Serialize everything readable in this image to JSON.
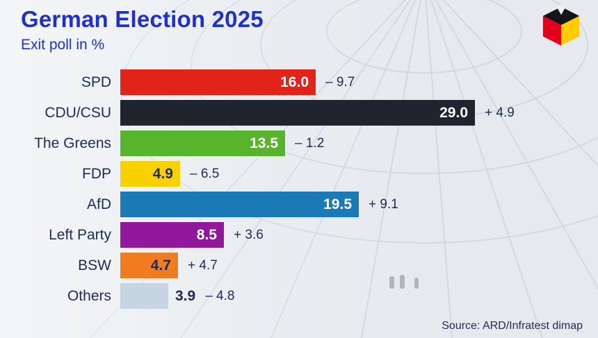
{
  "header": {
    "title": "German Election 2025",
    "subtitle": "Exit poll in %"
  },
  "source": {
    "text": "Source: ARD/Infratest dimap"
  },
  "colors": {
    "accent_blue": "#2030c8",
    "text_navy": "#1d2b52",
    "background": "#e6eaee",
    "logo_black": "#151518",
    "logo_red": "#e2001a",
    "logo_gold": "#ffcc00"
  },
  "chart_data": {
    "type": "bar",
    "orientation": "horizontal",
    "title": "German Election 2025",
    "subtitle": "Exit poll in %",
    "unit": "%",
    "value_axis_max": 29.0,
    "legend": "none",
    "grid": false,
    "categories": [
      "SPD",
      "CDU/CSU",
      "The Greens",
      "FDP",
      "AfD",
      "Left Party",
      "BSW",
      "Others"
    ],
    "values": [
      16.0,
      29.0,
      13.5,
      4.9,
      19.5,
      8.5,
      4.7,
      3.9
    ],
    "value_labels": [
      "16.0",
      "29.0",
      "13.5",
      "4.9",
      "19.5",
      "8.5",
      "4.7",
      "3.9"
    ],
    "changes": [
      "– 9.7",
      "+ 4.9",
      "– 1.2",
      "– 6.5",
      "+ 9.1",
      "+ 3.6",
      "+ 4.7",
      "– 4.8"
    ],
    "bar_colors": [
      "#e2231a",
      "#21242f",
      "#57b42c",
      "#f8d200",
      "#1a7ab5",
      "#91189c",
      "#f07c1f",
      "#c7d5e2"
    ],
    "value_text_colors": [
      "#ffffff",
      "#ffffff",
      "#ffffff",
      "#1d2b52",
      "#ffffff",
      "#ffffff",
      "#1d2b52",
      "#1d2b52"
    ],
    "value_inside": [
      true,
      true,
      true,
      true,
      true,
      true,
      true,
      false
    ],
    "source": "Source: ARD/Infratest dimap"
  }
}
